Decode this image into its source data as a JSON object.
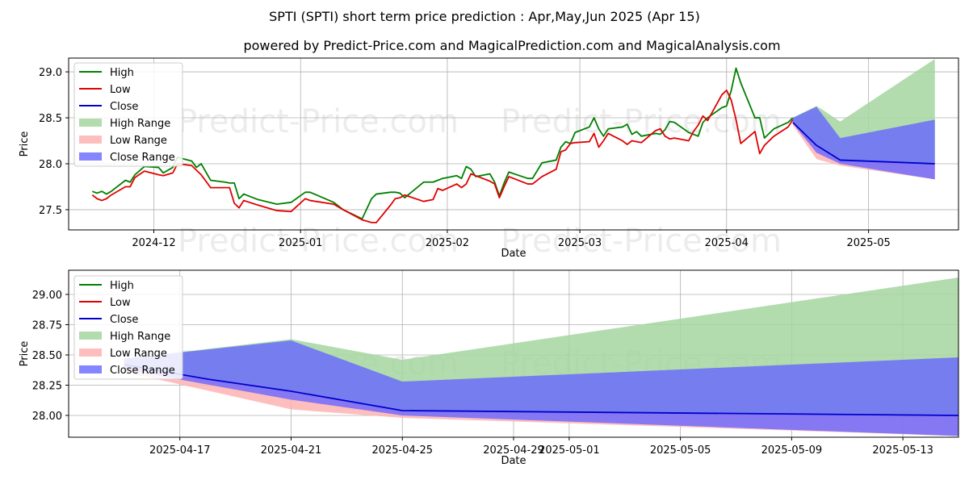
{
  "title": "SPTI (SPTI) short term price prediction : Apr,May,Jun 2025 (Apr 15)",
  "subtitle": "powered by Predict-Price.com and MagicalPrediction.com and MagicalAnalysis.com",
  "watermark": "Predict-Price.com",
  "colors": {
    "high": "#008000",
    "low": "#e00000",
    "close": "#0000cc",
    "high_range": "#a5d6a0",
    "low_range": "#ffb3b3",
    "close_range": "#6666ff",
    "grid": "#b0b0b0"
  },
  "chart_data": [
    {
      "type": "line",
      "title": "SPTI price history and prediction",
      "xlabel": "Date",
      "ylabel": "Price",
      "x_range": [
        "2024-11-13",
        "2025-05-20"
      ],
      "ylim": [
        27.28,
        29.15
      ],
      "yticks": [
        27.5,
        28.0,
        28.5,
        29.0
      ],
      "ytick_labels": [
        "27.5",
        "28.0",
        "28.5",
        "29.0"
      ],
      "xticks": [
        "2024-12-01",
        "2025-01-01",
        "2025-02-01",
        "2025-03-01",
        "2025-04-01",
        "2025-05-01"
      ],
      "xtick_labels": [
        "2024-12",
        "2025-01",
        "2025-02",
        "2025-03",
        "2025-04",
        "2025-05"
      ],
      "grid": true,
      "legend_position": "top-left",
      "legend": [
        "High",
        "Low",
        "Close",
        "High Range",
        "Low Range",
        "Close Range"
      ],
      "series": [
        {
          "name": "High",
          "dates": [
            "2024-11-18",
            "2024-11-19",
            "2024-11-20",
            "2024-11-21",
            "2024-11-22",
            "2024-11-25",
            "2024-11-26",
            "2024-11-27",
            "2024-11-29",
            "2024-12-02",
            "2024-12-03",
            "2024-12-05",
            "2024-12-06",
            "2024-12-09",
            "2024-12-10",
            "2024-12-11",
            "2024-12-13",
            "2024-12-16",
            "2024-12-17",
            "2024-12-18",
            "2024-12-19",
            "2024-12-20",
            "2024-12-23",
            "2024-12-27",
            "2024-12-30",
            "2025-01-02",
            "2025-01-03",
            "2025-01-08",
            "2025-01-10",
            "2025-01-14",
            "2025-01-16",
            "2025-01-17",
            "2025-01-20",
            "2025-01-21",
            "2025-01-22",
            "2025-01-23",
            "2025-01-27",
            "2025-01-29",
            "2025-01-30",
            "2025-01-31",
            "2025-02-03",
            "2025-02-04",
            "2025-02-05",
            "2025-02-06",
            "2025-02-07",
            "2025-02-10",
            "2025-02-11",
            "2025-02-12",
            "2025-02-13",
            "2025-02-14",
            "2025-02-18",
            "2025-02-19",
            "2025-02-21",
            "2025-02-24",
            "2025-02-25",
            "2025-02-26",
            "2025-02-27",
            "2025-02-28",
            "2025-03-03",
            "2025-03-04",
            "2025-03-05",
            "2025-03-06",
            "2025-03-07",
            "2025-03-10",
            "2025-03-11",
            "2025-03-12",
            "2025-03-13",
            "2025-03-14",
            "2025-03-17",
            "2025-03-18",
            "2025-03-19",
            "2025-03-20",
            "2025-03-21",
            "2025-03-24",
            "2025-03-25",
            "2025-03-26",
            "2025-03-27",
            "2025-03-28",
            "2025-03-31",
            "2025-04-01",
            "2025-04-02",
            "2025-04-03",
            "2025-04-04",
            "2025-04-07",
            "2025-04-08",
            "2025-04-09",
            "2025-04-10",
            "2025-04-11",
            "2025-04-14",
            "2025-04-15"
          ],
          "values": [
            27.7,
            27.68,
            27.7,
            27.67,
            27.7,
            27.82,
            27.8,
            27.88,
            27.97,
            27.96,
            27.9,
            27.96,
            28.07,
            28.03,
            27.96,
            28.0,
            27.82,
            27.8,
            27.79,
            27.79,
            27.62,
            27.67,
            27.61,
            27.56,
            27.58,
            27.69,
            27.69,
            27.58,
            27.5,
            27.4,
            27.62,
            27.67,
            27.69,
            27.69,
            27.68,
            27.63,
            27.8,
            27.8,
            27.82,
            27.84,
            27.87,
            27.84,
            27.97,
            27.94,
            27.86,
            27.89,
            27.8,
            27.65,
            27.79,
            27.91,
            27.84,
            27.84,
            28.01,
            28.04,
            28.18,
            28.24,
            28.22,
            28.34,
            28.4,
            28.5,
            28.38,
            28.3,
            28.38,
            28.4,
            28.43,
            28.32,
            28.35,
            28.3,
            28.33,
            28.32,
            28.37,
            28.46,
            28.45,
            28.34,
            28.32,
            28.3,
            28.45,
            28.5,
            28.61,
            28.63,
            28.8,
            29.04,
            28.88,
            28.5,
            28.5,
            28.28,
            28.33,
            28.38,
            28.45,
            28.5
          ]
        },
        {
          "name": "Low",
          "dates": [
            "2024-11-18",
            "2024-11-19",
            "2024-11-20",
            "2024-11-21",
            "2024-11-22",
            "2024-11-25",
            "2024-11-26",
            "2024-11-27",
            "2024-11-29",
            "2024-12-02",
            "2024-12-03",
            "2024-12-05",
            "2024-12-06",
            "2024-12-09",
            "2024-12-10",
            "2024-12-11",
            "2024-12-13",
            "2024-12-16",
            "2024-12-17",
            "2024-12-18",
            "2024-12-19",
            "2024-12-20",
            "2024-12-23",
            "2024-12-27",
            "2024-12-30",
            "2025-01-02",
            "2025-01-03",
            "2025-01-08",
            "2025-01-10",
            "2025-01-14",
            "2025-01-16",
            "2025-01-17",
            "2025-01-20",
            "2025-01-21",
            "2025-01-22",
            "2025-01-23",
            "2025-01-27",
            "2025-01-29",
            "2025-01-30",
            "2025-01-31",
            "2025-02-03",
            "2025-02-04",
            "2025-02-05",
            "2025-02-06",
            "2025-02-07",
            "2025-02-10",
            "2025-02-11",
            "2025-02-12",
            "2025-02-13",
            "2025-02-14",
            "2025-02-18",
            "2025-02-19",
            "2025-02-21",
            "2025-02-24",
            "2025-02-25",
            "2025-02-26",
            "2025-02-27",
            "2025-02-28",
            "2025-03-03",
            "2025-03-04",
            "2025-03-05",
            "2025-03-06",
            "2025-03-07",
            "2025-03-10",
            "2025-03-11",
            "2025-03-12",
            "2025-03-13",
            "2025-03-14",
            "2025-03-17",
            "2025-03-18",
            "2025-03-19",
            "2025-03-20",
            "2025-03-21",
            "2025-03-24",
            "2025-03-25",
            "2025-03-26",
            "2025-03-27",
            "2025-03-28",
            "2025-03-31",
            "2025-04-01",
            "2025-04-02",
            "2025-04-03",
            "2025-04-04",
            "2025-04-07",
            "2025-04-08",
            "2025-04-09",
            "2025-04-10",
            "2025-04-11",
            "2025-04-14",
            "2025-04-15"
          ],
          "values": [
            27.66,
            27.62,
            27.6,
            27.62,
            27.66,
            27.75,
            27.75,
            27.85,
            27.92,
            27.88,
            27.87,
            27.9,
            28.0,
            27.98,
            27.93,
            27.88,
            27.74,
            27.74,
            27.74,
            27.57,
            27.52,
            27.6,
            27.55,
            27.49,
            27.48,
            27.62,
            27.6,
            27.56,
            27.5,
            27.39,
            27.36,
            27.36,
            27.55,
            27.62,
            27.63,
            27.66,
            27.59,
            27.61,
            27.73,
            27.71,
            27.78,
            27.74,
            27.78,
            27.89,
            27.87,
            27.81,
            27.78,
            27.63,
            27.75,
            27.86,
            27.78,
            27.78,
            27.86,
            27.94,
            28.13,
            28.15,
            28.22,
            28.23,
            28.24,
            28.33,
            28.18,
            28.25,
            28.33,
            28.25,
            28.21,
            28.25,
            28.24,
            28.23,
            28.36,
            28.38,
            28.3,
            28.27,
            28.28,
            28.25,
            28.35,
            28.42,
            28.52,
            28.47,
            28.75,
            28.8,
            28.69,
            28.48,
            28.22,
            28.35,
            28.11,
            28.2,
            28.25,
            28.3,
            28.4,
            28.48
          ]
        },
        {
          "name": "Close",
          "dates": [
            "2025-04-15",
            "2025-04-20",
            "2025-04-25",
            "2025-05-15"
          ],
          "values": [
            28.45,
            28.2,
            28.04,
            28.0
          ]
        }
      ],
      "ranges": [
        {
          "name": "High Range",
          "dates": [
            "2025-04-15",
            "2025-04-20",
            "2025-04-25",
            "2025-05-15"
          ],
          "lower": [
            28.45,
            28.2,
            28.04,
            28.0
          ],
          "upper": [
            28.5,
            28.63,
            28.46,
            29.14
          ]
        },
        {
          "name": "Low Range",
          "dates": [
            "2025-04-15",
            "2025-04-20",
            "2025-04-25",
            "2025-05-15"
          ],
          "lower": [
            28.42,
            28.05,
            27.98,
            27.83
          ],
          "upper": [
            28.45,
            28.2,
            28.04,
            28.0
          ]
        },
        {
          "name": "Close Range",
          "dates": [
            "2025-04-15",
            "2025-04-20",
            "2025-04-25",
            "2025-05-15"
          ],
          "lower": [
            28.44,
            28.12,
            28.0,
            27.83
          ],
          "upper": [
            28.5,
            28.62,
            28.28,
            28.48
          ]
        }
      ]
    },
    {
      "type": "line",
      "title": "SPTI prediction detail",
      "xlabel": "Date",
      "ylabel": "Price",
      "x_range": [
        "2025-04-13",
        "2025-05-15"
      ],
      "ylim": [
        27.82,
        29.2
      ],
      "yticks": [
        28.0,
        28.25,
        28.5,
        28.75,
        29.0
      ],
      "ytick_labels": [
        "28.00",
        "28.25",
        "28.50",
        "28.75",
        "29.00"
      ],
      "xticks": [
        "2025-04-17",
        "2025-04-21",
        "2025-04-25",
        "2025-04-29",
        "2025-05-01",
        "2025-05-05",
        "2025-05-09",
        "2025-05-13"
      ],
      "xtick_labels": [
        "2025-04-17",
        "2025-04-21",
        "2025-04-25",
        "2025-04-29",
        "2025-05-01",
        "2025-05-05",
        "2025-05-09",
        "2025-05-13"
      ],
      "grid": true,
      "legend_position": "top-left",
      "legend": [
        "High",
        "Low",
        "Close",
        "High Range",
        "Low Range",
        "Close Range"
      ],
      "series": [
        {
          "name": "Close",
          "dates": [
            "2025-04-15",
            "2025-04-18",
            "2025-04-21",
            "2025-04-25",
            "2025-05-15"
          ],
          "values": [
            28.42,
            28.3,
            28.2,
            28.04,
            28.0
          ]
        }
      ],
      "ranges": [
        {
          "name": "High Range",
          "dates": [
            "2025-04-15",
            "2025-04-21",
            "2025-04-25",
            "2025-05-15"
          ],
          "lower": [
            28.42,
            28.2,
            28.04,
            28.0
          ],
          "upper": [
            28.47,
            28.63,
            28.46,
            29.14
          ]
        },
        {
          "name": "Low Range",
          "dates": [
            "2025-04-15",
            "2025-04-21",
            "2025-04-25",
            "2025-05-15"
          ],
          "lower": [
            28.36,
            28.05,
            27.98,
            27.83
          ],
          "upper": [
            28.42,
            28.2,
            28.04,
            28.0
          ]
        },
        {
          "name": "Close Range",
          "dates": [
            "2025-04-15",
            "2025-04-21",
            "2025-04-25",
            "2025-05-15"
          ],
          "lower": [
            28.38,
            28.13,
            28.0,
            27.83
          ],
          "upper": [
            28.47,
            28.62,
            28.28,
            28.48
          ]
        }
      ]
    }
  ]
}
